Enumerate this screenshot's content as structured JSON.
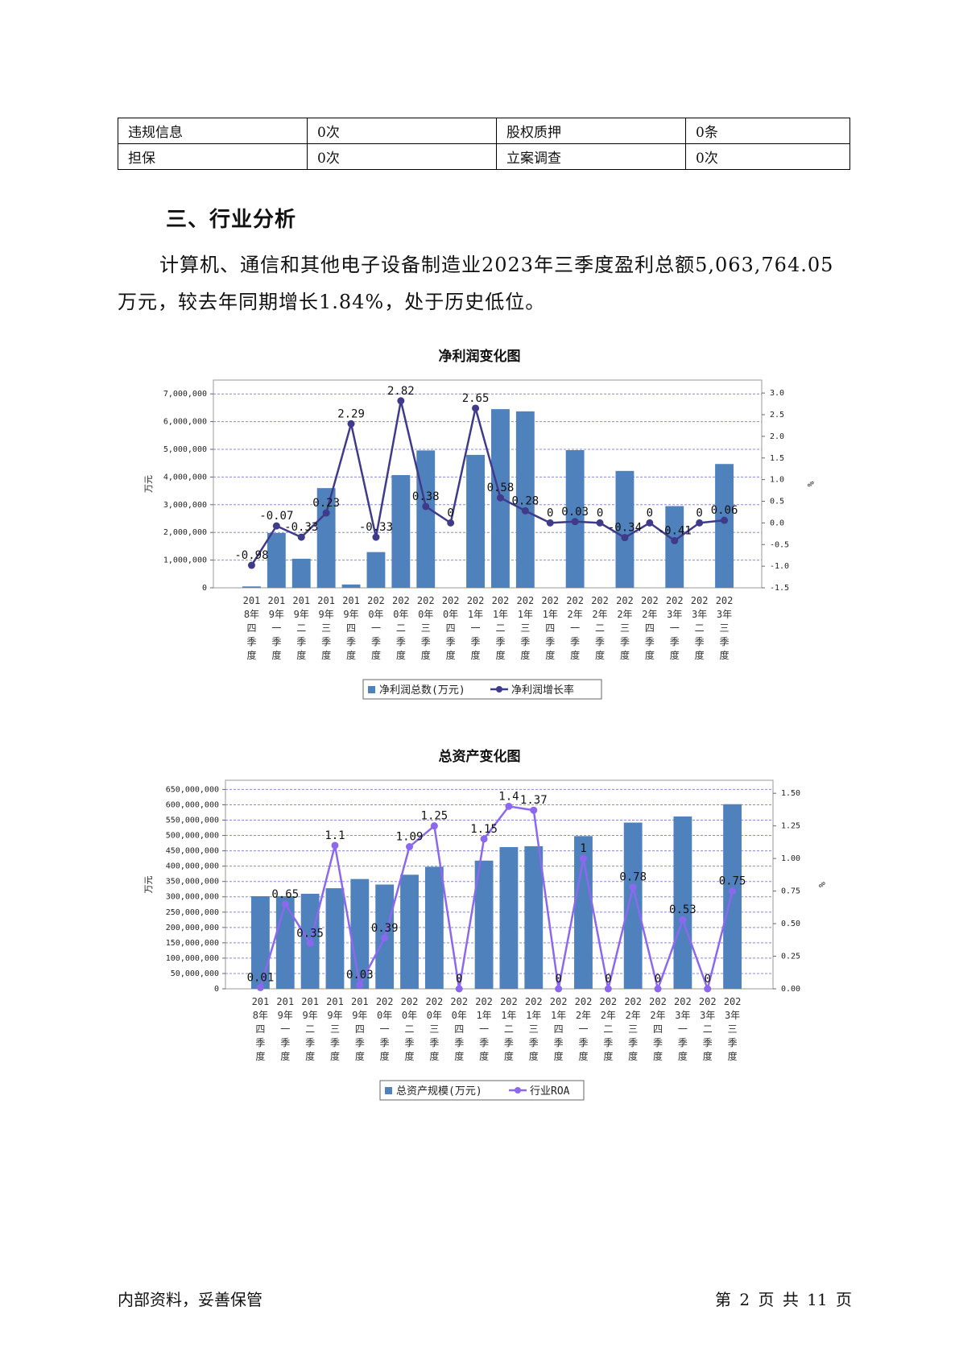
{
  "info_table": {
    "rows": [
      [
        "违规信息",
        "0次",
        "股权质押",
        "0条"
      ],
      [
        "担保",
        "0次",
        "立案调查",
        "0次"
      ]
    ]
  },
  "section": {
    "title": "三、行业分析",
    "paragraph": "计算机、通信和其他电子设备制造业2023年三季度盈利总额5,063,764.05万元，较去年同期增长1.84%，处于历史低位。"
  },
  "chart_data": [
    {
      "type": "bar",
      "title": "净利润变化图",
      "categories": [
        [
          "201",
          "8年",
          "四",
          "季",
          "度"
        ],
        [
          "201",
          "9年",
          "一",
          "季",
          "度"
        ],
        [
          "201",
          "9年",
          "二",
          "季",
          "度"
        ],
        [
          "201",
          "9年",
          "三",
          "季",
          "度"
        ],
        [
          "201",
          "9年",
          "四",
          "季",
          "度"
        ],
        [
          "202",
          "0年",
          "一",
          "季",
          "度"
        ],
        [
          "202",
          "0年",
          "二",
          "季",
          "度"
        ],
        [
          "202",
          "0年",
          "三",
          "季",
          "度"
        ],
        [
          "202",
          "0年",
          "四",
          "季",
          "度"
        ],
        [
          "202",
          "1年",
          "一",
          "季",
          "度"
        ],
        [
          "202",
          "1年",
          "二",
          "季",
          "度"
        ],
        [
          "202",
          "1年",
          "三",
          "季",
          "度"
        ],
        [
          "202",
          "1年",
          "四",
          "季",
          "度"
        ],
        [
          "202",
          "2年",
          "一",
          "季",
          "度"
        ],
        [
          "202",
          "2年",
          "二",
          "季",
          "度"
        ],
        [
          "202",
          "2年",
          "三",
          "季",
          "度"
        ],
        [
          "202",
          "2年",
          "四",
          "季",
          "度"
        ],
        [
          "202",
          "3年",
          "一",
          "季",
          "度"
        ],
        [
          "202",
          "3年",
          "二",
          "季",
          "度"
        ],
        [
          "202",
          "3年",
          "三",
          "季",
          "度"
        ]
      ],
      "series": [
        {
          "name": "净利润总数(万元)",
          "kind": "bar",
          "axis": "left",
          "values": [
            50000,
            1980000,
            1050000,
            3600000,
            120000,
            1290000,
            4070000,
            4960000,
            0,
            4800000,
            6450000,
            6370000,
            0,
            4970000,
            0,
            4220000,
            0,
            2950000,
            0,
            4470000
          ]
        },
        {
          "name": "净利润增长率",
          "kind": "line",
          "axis": "right",
          "values": [
            -0.98,
            -0.07,
            -0.33,
            0.23,
            2.29,
            -0.33,
            2.82,
            0.38,
            0,
            2.65,
            0.58,
            0.28,
            0,
            0.03,
            0,
            -0.34,
            0,
            -0.41,
            0,
            0.06
          ]
        }
      ],
      "point_labels": [
        "-0.98",
        "-0.07",
        "-0.33",
        "0.23",
        "2.29",
        "-0.33",
        "2.82",
        "0.38",
        "0",
        "2.65",
        "0.58",
        "0.28",
        "0",
        "0.03",
        "0",
        "-0.34",
        "0",
        "-0.41",
        "0",
        "0.06"
      ],
      "ylabel": "万元",
      "y2label": "%",
      "ylim": [
        0,
        7500000
      ],
      "y2lim": [
        -1.5,
        3.3
      ],
      "yticks": [
        "0",
        "1,000,000",
        "2,000,000",
        "3,000,000",
        "4,000,000",
        "5,000,000",
        "6,000,000",
        "7,000,000"
      ],
      "y2ticks": [
        "-1.5",
        "-1.0",
        "-0.5",
        "0.0",
        "0.5",
        "1.0",
        "1.5",
        "2.0",
        "2.5",
        "3.0"
      ],
      "grid": true,
      "legend": "bottom",
      "colors": {
        "bar": "#4f81bd",
        "line": "#3f3a8a",
        "grid": "#8888dd"
      }
    },
    {
      "type": "bar",
      "title": "总资产变化图",
      "categories": [
        [
          "201",
          "8年",
          "四",
          "季",
          "度"
        ],
        [
          "201",
          "9年",
          "一",
          "季",
          "度"
        ],
        [
          "201",
          "9年",
          "二",
          "季",
          "度"
        ],
        [
          "201",
          "9年",
          "三",
          "季",
          "度"
        ],
        [
          "201",
          "9年",
          "四",
          "季",
          "度"
        ],
        [
          "202",
          "0年",
          "一",
          "季",
          "度"
        ],
        [
          "202",
          "0年",
          "二",
          "季",
          "度"
        ],
        [
          "202",
          "0年",
          "三",
          "季",
          "度"
        ],
        [
          "202",
          "0年",
          "四",
          "季",
          "度"
        ],
        [
          "202",
          "1年",
          "一",
          "季",
          "度"
        ],
        [
          "202",
          "1年",
          "二",
          "季",
          "度"
        ],
        [
          "202",
          "1年",
          "三",
          "季",
          "度"
        ],
        [
          "202",
          "1年",
          "四",
          "季",
          "度"
        ],
        [
          "202",
          "2年",
          "一",
          "季",
          "度"
        ],
        [
          "202",
          "2年",
          "二",
          "季",
          "度"
        ],
        [
          "202",
          "2年",
          "三",
          "季",
          "度"
        ],
        [
          "202",
          "2年",
          "四",
          "季",
          "度"
        ],
        [
          "202",
          "3年",
          "一",
          "季",
          "度"
        ],
        [
          "202",
          "3年",
          "二",
          "季",
          "度"
        ],
        [
          "202",
          "3年",
          "三",
          "季",
          "度"
        ]
      ],
      "series": [
        {
          "name": "总资产规模(万元)",
          "kind": "bar",
          "axis": "left",
          "values": [
            302000000,
            302000000,
            310000000,
            328000000,
            358000000,
            340000000,
            372000000,
            398000000,
            0,
            418000000,
            462000000,
            465000000,
            0,
            498000000,
            0,
            542000000,
            0,
            562000000,
            0,
            602000000
          ]
        },
        {
          "name": "行业ROA",
          "kind": "line",
          "axis": "right",
          "values": [
            0.01,
            0.65,
            0.35,
            1.1,
            0.03,
            0.39,
            1.09,
            1.25,
            0,
            1.15,
            1.4,
            1.37,
            0,
            1,
            0,
            0.78,
            0,
            0.53,
            0,
            0.75
          ]
        }
      ],
      "point_labels": [
        "0.01",
        "0.65",
        "0.35",
        "1.1",
        "0.03",
        "0.39",
        "1.09",
        "1.25",
        "0",
        "1.15",
        "1.4",
        "1.37",
        "0",
        "1",
        "0",
        "0.78",
        "0",
        "0.53",
        "0",
        "0.75"
      ],
      "ylabel": "万元",
      "y2label": "%",
      "ylim": [
        0,
        680000000
      ],
      "y2lim": [
        0,
        1.6
      ],
      "yticks": [
        "0",
        "50,000,000",
        "100,000,000",
        "150,000,000",
        "200,000,000",
        "250,000,000",
        "300,000,000",
        "350,000,000",
        "400,000,000",
        "450,000,000",
        "500,000,000",
        "550,000,000",
        "600,000,000",
        "650,000,000"
      ],
      "y2ticks": [
        "0.00",
        "0.25",
        "0.50",
        "0.75",
        "1.00",
        "1.25",
        "1.50"
      ],
      "grid": true,
      "legend": "bottom",
      "colors": {
        "bar": "#4f81bd",
        "line": "#8b68ee",
        "grid": "#8888dd"
      }
    }
  ],
  "footer": {
    "left": "内部资料，妥善保管",
    "right": "第 2 页  共 11 页"
  }
}
